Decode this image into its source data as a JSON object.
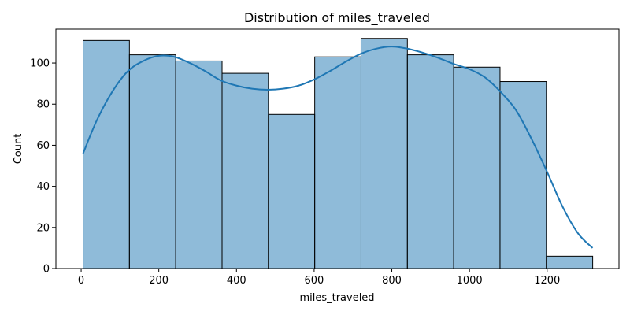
{
  "chart_data": {
    "type": "bar",
    "title": "Distribution of miles_traveled",
    "xlabel": "miles_traveled",
    "ylabel": "Count",
    "xlim": [
      -65,
      1385
    ],
    "ylim": [
      0,
      116.5
    ],
    "x_ticks": [
      0,
      200,
      400,
      600,
      800,
      1000,
      1200
    ],
    "y_ticks": [
      0,
      20,
      40,
      60,
      80,
      100
    ],
    "grid": false,
    "bin_edges": [
      5,
      124.3,
      243.6,
      362.9,
      482.2,
      601.5,
      720.8,
      840.1,
      959.4,
      1078.7,
      1198,
      1317.3
    ],
    "values": [
      111,
      104,
      101,
      95,
      75,
      103,
      112,
      104,
      98,
      91,
      6
    ],
    "bar_color": "#1f77b4",
    "bar_alpha": 0.5,
    "edge_color": "#000000",
    "kde": {
      "color": "#1f77b4",
      "x": [
        5,
        40,
        80,
        120,
        160,
        200,
        240,
        280,
        320,
        360,
        400,
        440,
        480,
        520,
        560,
        600,
        640,
        680,
        720,
        760,
        800,
        840,
        880,
        920,
        960,
        1000,
        1040,
        1080,
        1120,
        1160,
        1200,
        1240,
        1280,
        1317
      ],
      "y": [
        56,
        72,
        86,
        96,
        101,
        103.5,
        103,
        100,
        96,
        91.5,
        89,
        87.5,
        87,
        87.5,
        89,
        92,
        96,
        100.5,
        104.5,
        107,
        108,
        107,
        105,
        102.5,
        99.5,
        97,
        93,
        86,
        77,
        63,
        47,
        30,
        17,
        10
      ]
    }
  }
}
